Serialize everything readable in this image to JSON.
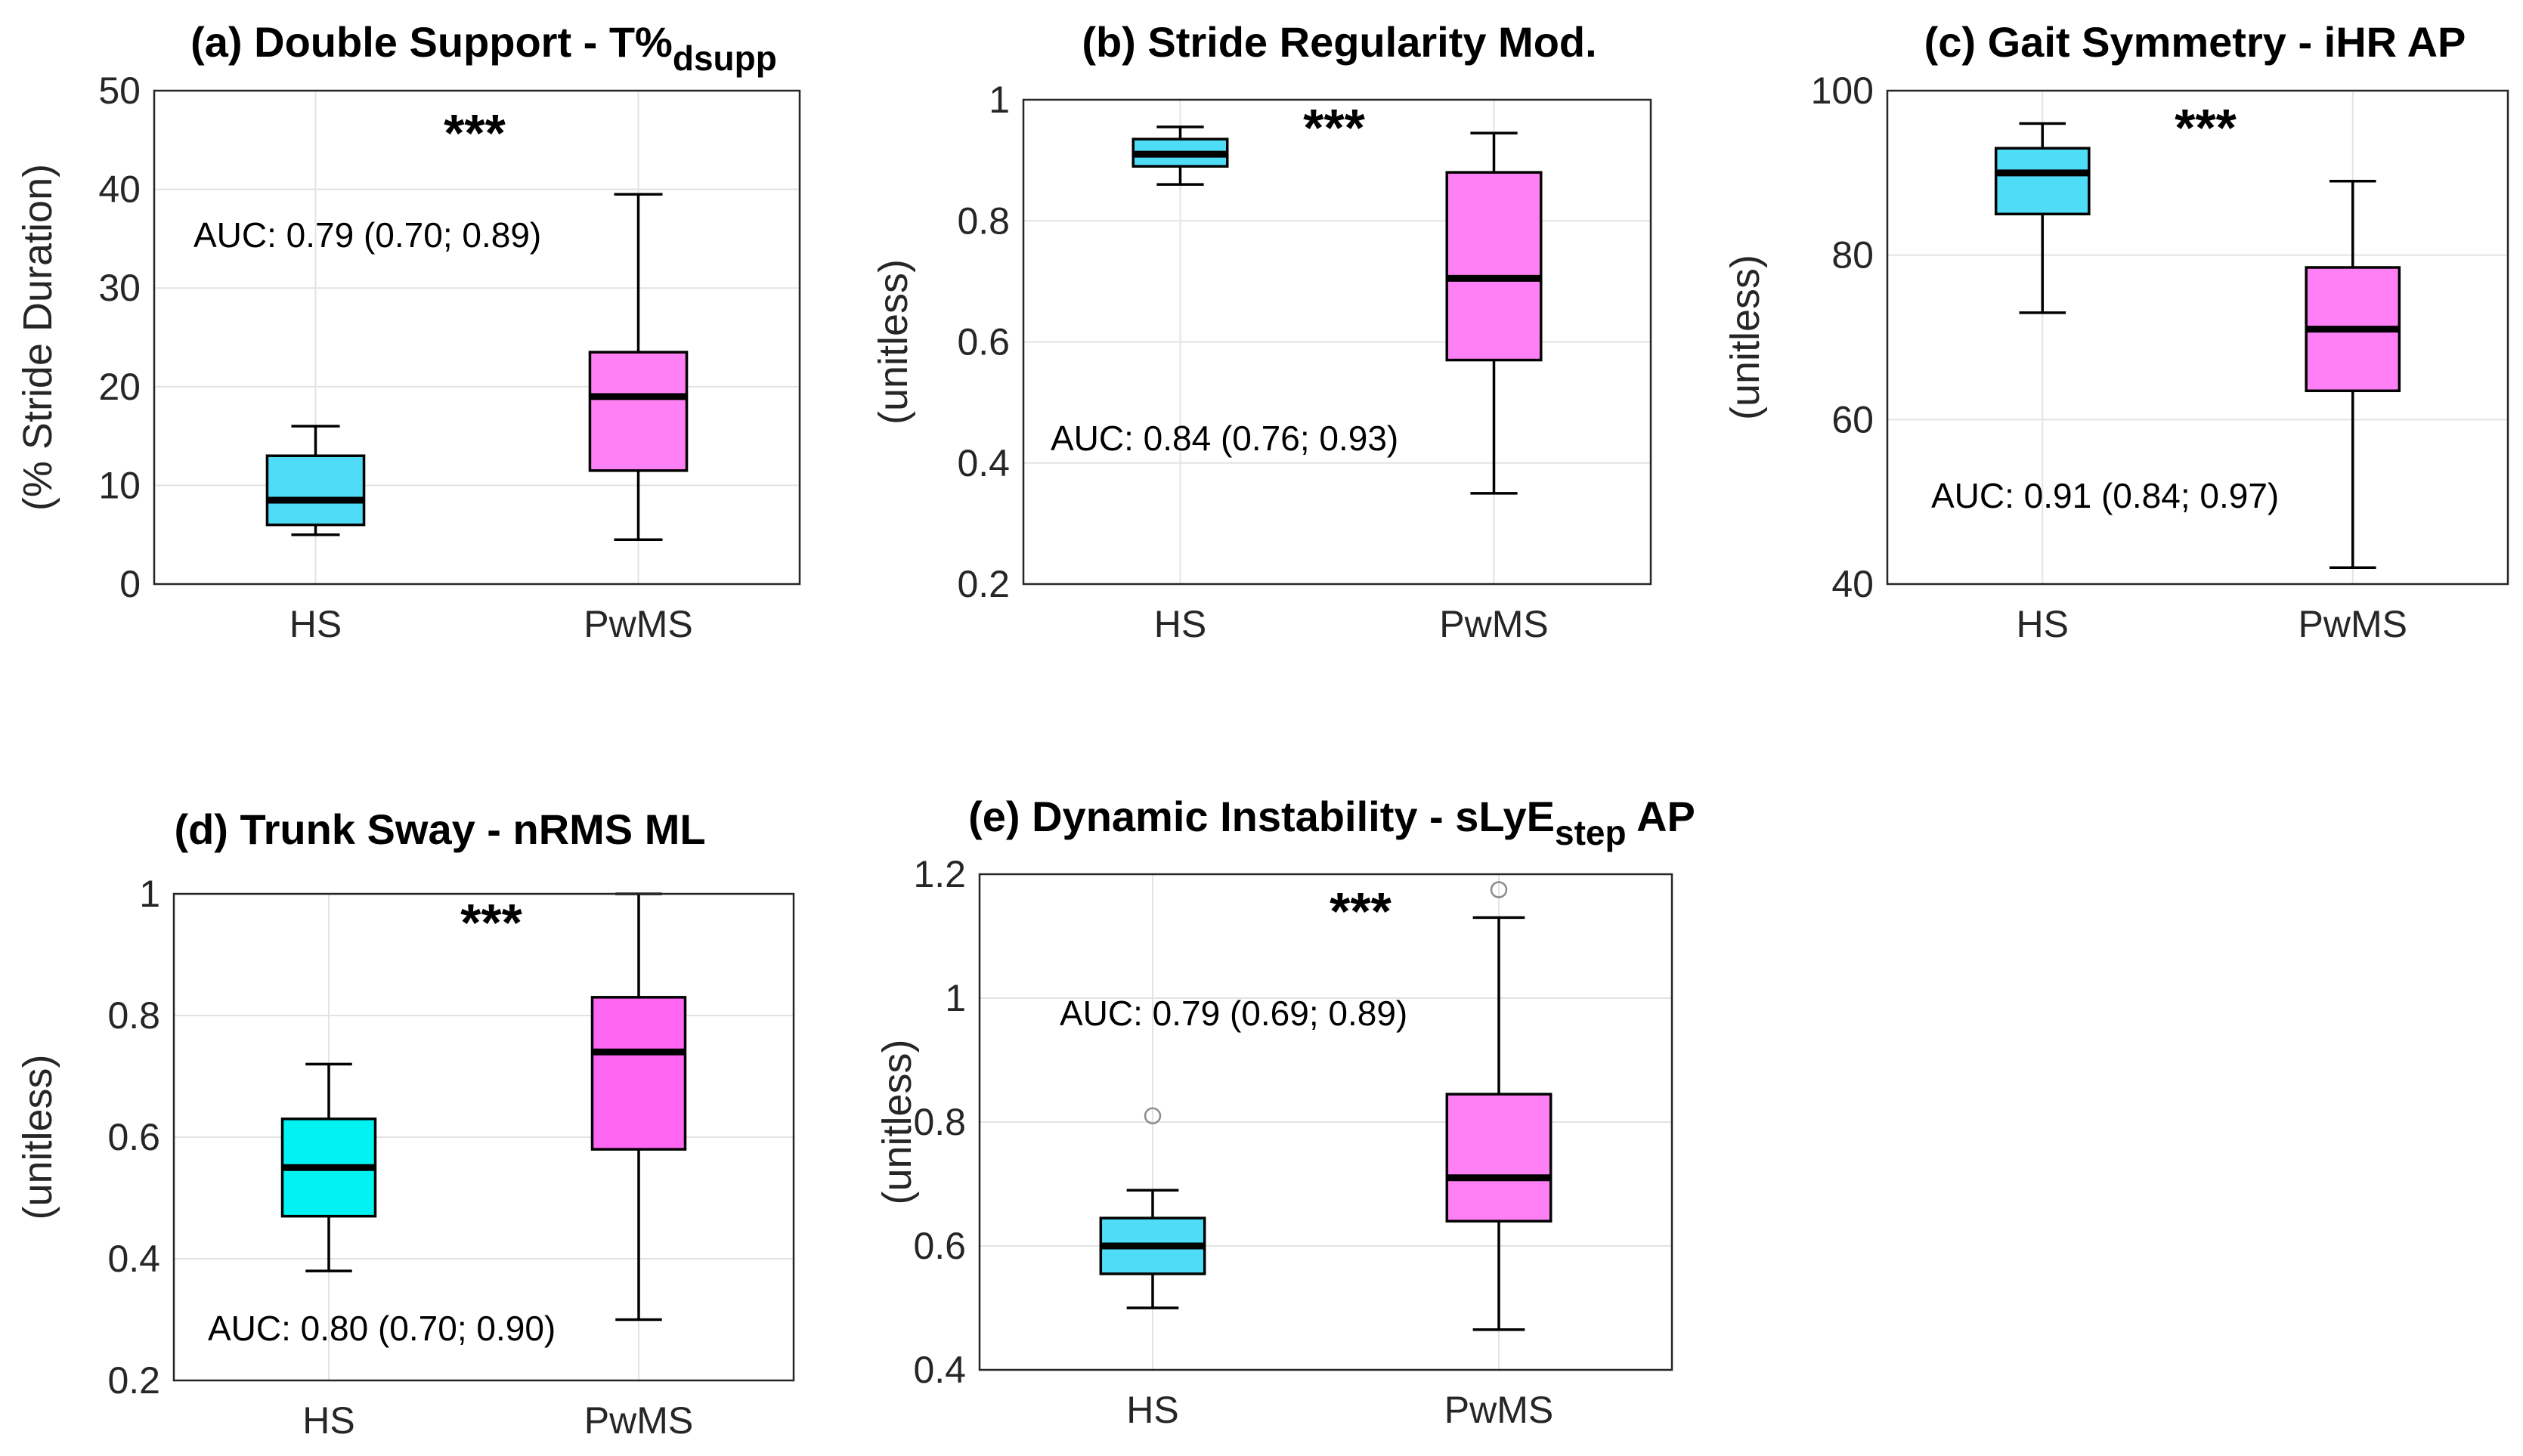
{
  "chart_data": [
    {
      "type": "box",
      "title": "(a) Double Support - T%",
      "title_subscript": "dsupp",
      "ylabel": "(% Stride Duration)",
      "ylim": [
        0,
        50
      ],
      "yticks": [
        "0",
        "10",
        "20",
        "30",
        "40",
        "50"
      ],
      "yticks_values": [
        0,
        10,
        20,
        30,
        40,
        50
      ],
      "categories": [
        "HS",
        "PwMS"
      ],
      "significance": "***",
      "auc_text": "AUC: 0.79 (0.70; 0.89)",
      "boxes": [
        {
          "group": "HS",
          "whisker_low": 5,
          "q1": 6,
          "median": 8.5,
          "q3": 13,
          "whisker_high": 16,
          "outliers": [],
          "color": "#4fdcf7"
        },
        {
          "group": "PwMS",
          "whisker_low": 4.5,
          "q1": 11.5,
          "median": 19,
          "q3": 23.5,
          "whisker_high": 39.5,
          "outliers": [],
          "color": "#ff80f5"
        }
      ]
    },
    {
      "type": "box",
      "title": "(b) Stride Regularity Mod.",
      "title_subscript": "",
      "ylabel": "(unitless)",
      "ylim": [
        0.2,
        1.0
      ],
      "yticks": [
        "0.2",
        "0.4",
        "0.6",
        "0.8",
        "1"
      ],
      "yticks_values": [
        0.2,
        0.4,
        0.6,
        0.8,
        1.0
      ],
      "categories": [
        "HS",
        "PwMS"
      ],
      "significance": "***",
      "auc_text": "AUC: 0.84 (0.76; 0.93)",
      "boxes": [
        {
          "group": "HS",
          "whisker_low": 0.86,
          "q1": 0.89,
          "median": 0.91,
          "q3": 0.935,
          "whisker_high": 0.955,
          "outliers": [],
          "color": "#4fdcf7"
        },
        {
          "group": "PwMS",
          "whisker_low": 0.35,
          "q1": 0.57,
          "median": 0.705,
          "q3": 0.88,
          "whisker_high": 0.945,
          "outliers": [],
          "color": "#ff80f5"
        }
      ]
    },
    {
      "type": "box",
      "title": "(c) Gait Symmetry - iHR AP",
      "title_subscript": "",
      "ylabel": "(unitless)",
      "ylim": [
        40,
        100
      ],
      "yticks": [
        "40",
        "60",
        "80",
        "100"
      ],
      "yticks_values": [
        40,
        60,
        80,
        100
      ],
      "categories": [
        "HS",
        "PwMS"
      ],
      "significance": "***",
      "auc_text": "AUC: 0.91 (0.84; 0.97)",
      "boxes": [
        {
          "group": "HS",
          "whisker_low": 73,
          "q1": 85,
          "median": 90,
          "q3": 93,
          "whisker_high": 96,
          "outliers": [],
          "color": "#4fdcf7"
        },
        {
          "group": "PwMS",
          "whisker_low": 42,
          "q1": 63.5,
          "median": 71,
          "q3": 78.5,
          "whisker_high": 89,
          "outliers": [],
          "color": "#ff80f5"
        }
      ]
    },
    {
      "type": "box",
      "title": "(d) Trunk Sway - nRMS ML",
      "title_subscript": "",
      "ylabel": "(unitless)",
      "ylim": [
        0.2,
        1.0
      ],
      "yticks": [
        "0.2",
        "0.4",
        "0.6",
        "0.8",
        "1"
      ],
      "yticks_values": [
        0.2,
        0.4,
        0.6,
        0.8,
        1.0
      ],
      "categories": [
        "HS",
        "PwMS"
      ],
      "significance": "***",
      "auc_text": "AUC: 0.80 (0.70; 0.90)",
      "boxes": [
        {
          "group": "HS",
          "whisker_low": 0.38,
          "q1": 0.47,
          "median": 0.55,
          "q3": 0.63,
          "whisker_high": 0.72,
          "outliers": [],
          "color": "#00f2f2"
        },
        {
          "group": "PwMS",
          "whisker_low": 0.3,
          "q1": 0.58,
          "median": 0.74,
          "q3": 0.83,
          "whisker_high": 1.0,
          "outliers": [],
          "color": "#ff66f2"
        }
      ]
    },
    {
      "type": "box",
      "title": "(e) Dynamic Instability - sLyE",
      "title_subscript": "step",
      "title_suffix": " AP",
      "ylabel": "(unitless)",
      "ylim": [
        0.4,
        1.2
      ],
      "yticks": [
        "0.4",
        "0.6",
        "0.8",
        "1",
        "1.2"
      ],
      "yticks_values": [
        0.4,
        0.6,
        0.8,
        1.0,
        1.2
      ],
      "categories": [
        "HS",
        "PwMS"
      ],
      "significance": "***",
      "auc_text": "AUC: 0.79 (0.69; 0.89)",
      "boxes": [
        {
          "group": "HS",
          "whisker_low": 0.5,
          "q1": 0.555,
          "median": 0.6,
          "q3": 0.645,
          "whisker_high": 0.69,
          "outliers": [
            0.81
          ],
          "color": "#4fdcf7"
        },
        {
          "group": "PwMS",
          "whisker_low": 0.465,
          "q1": 0.64,
          "median": 0.71,
          "q3": 0.845,
          "whisker_high": 1.13,
          "outliers": [
            1.175
          ],
          "color": "#ff80f5"
        }
      ]
    }
  ]
}
